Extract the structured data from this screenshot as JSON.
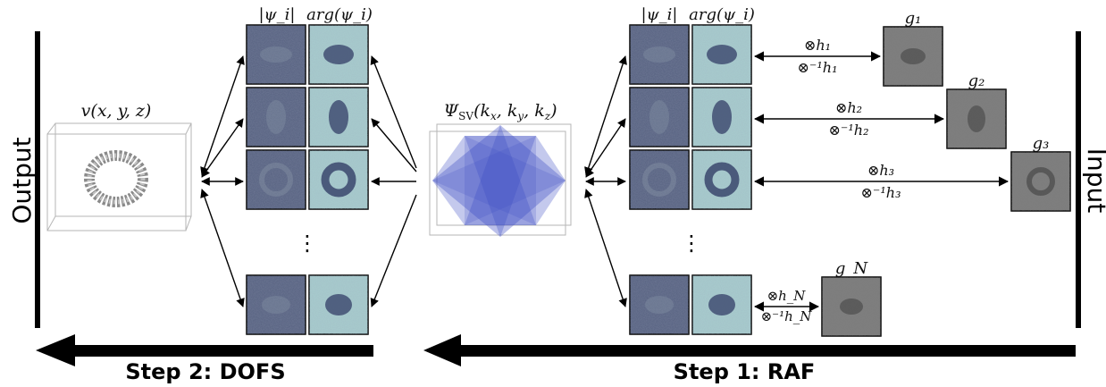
{
  "labels": {
    "output": "Output",
    "input": "Input",
    "step1": "Step 1: RAF",
    "step2": "Step 2: DOFS",
    "volume": "v(x, y, z)",
    "psi_sv": "Ψ_SV(k_x, k_y, k_z)",
    "psi_sv_main": "Ψ",
    "psi_sv_sub": "SV",
    "psi_sv_args": "(k",
    "abs_psi": "|ψ_i|",
    "arg_psi": "arg(ψ_i)",
    "vdots": "⋮"
  },
  "ops": [
    {
      "forward": "⊗h₁",
      "inverse": "⊗⁻¹h₁"
    },
    {
      "forward": "⊗h₂",
      "inverse": "⊗⁻¹h₂"
    },
    {
      "forward": "⊗h₃",
      "inverse": "⊗⁻¹h₃"
    },
    {
      "forward": "⊗h_N",
      "inverse": "⊗⁻¹h_N"
    }
  ],
  "g_labels": [
    "g₁",
    "g₂",
    "g₃",
    "g_N"
  ],
  "colors": {
    "abs_panel": "#55607f",
    "arg_panel": "#a7cdcd",
    "g_panel": "#7e7e7e",
    "octahedron": "#3b4bc4",
    "arrow": "#000000"
  }
}
